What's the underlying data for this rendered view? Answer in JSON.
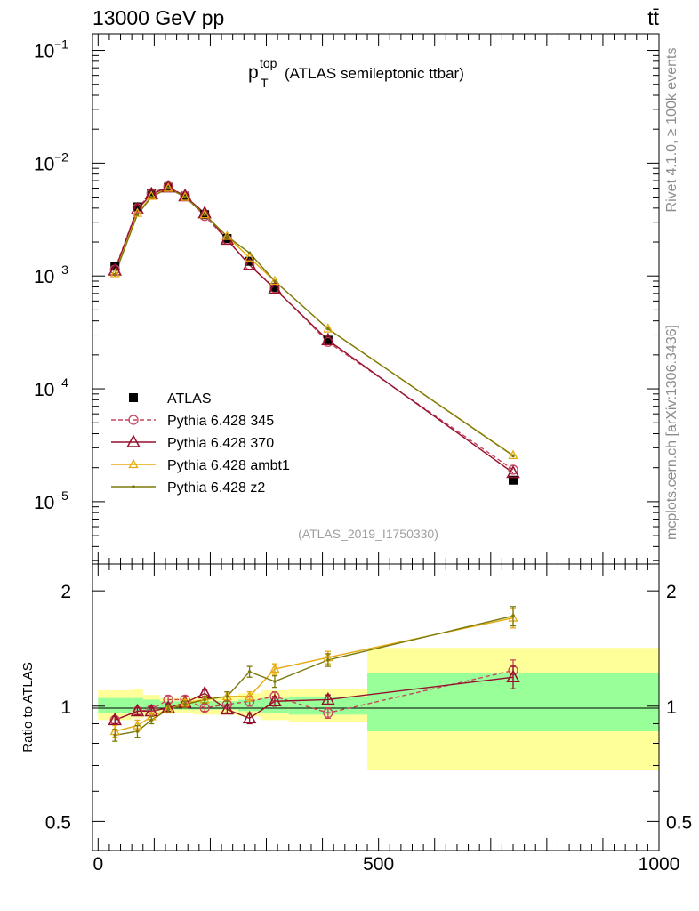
{
  "header": {
    "left": "13000 GeV pp",
    "right": "tt̄"
  },
  "side_labels": {
    "rivet": "Rivet 4.1.0, ≥ 100k events",
    "mcplots": "mcplots.cern.ch [arXiv:1306.3436]"
  },
  "colors": {
    "ATLAS": "#000000",
    "p345": "#c8465f",
    "p370": "#96102e",
    "ambt1": "#e6a90f",
    "z2": "#7a7a0c",
    "band_inner": "#99ff99",
    "band_outer": "#ffff99"
  },
  "chart_data": [
    {
      "type": "line",
      "panel": "main",
      "title_main": "p",
      "title_sub": "T",
      "title_sup": "top",
      "title_rest": "(ATLAS semileptonic ttbar)",
      "watermark": "(ATLAS_2019_I1750330)",
      "yscale": "log",
      "xlim": [
        -10,
        1000
      ],
      "ylim": [
        2.8e-06,
        0.14
      ],
      "ytick_labels": [
        {
          "value": 0.1,
          "base": "10",
          "exp": "−1"
        },
        {
          "value": 0.01,
          "base": "10",
          "exp": "−2"
        },
        {
          "value": 0.001,
          "base": "10",
          "exp": "−3"
        },
        {
          "value": 0.0001,
          "base": "10",
          "exp": "−4"
        },
        {
          "value": 1e-05,
          "base": "10",
          "exp": "−5"
        }
      ],
      "legend_position": "lower-left",
      "x": [
        30,
        70,
        95,
        125,
        155,
        190,
        230,
        270,
        315,
        410,
        740
      ],
      "series": [
        {
          "name": "ATLAS",
          "key": "ATLAS",
          "style": "data",
          "values": [
            0.00122,
            0.0041,
            0.0054,
            0.0061,
            0.0051,
            0.0035,
            0.00215,
            0.00135,
            0.00079,
            0.00027,
            1.55e-05
          ]
        },
        {
          "name": "Pythia 6.428 345",
          "key": "p345",
          "style": "circle-dashed",
          "values": [
            0.00114,
            0.004,
            0.0054,
            0.0062,
            0.0051,
            0.0034,
            0.0021,
            0.00125,
            0.00078,
            0.00026,
            1.92e-05
          ]
        },
        {
          "name": "Pythia 6.428 370",
          "key": "p370",
          "style": "triangle",
          "values": [
            0.00112,
            0.0039,
            0.0053,
            0.0061,
            0.0051,
            0.0036,
            0.0021,
            0.00125,
            0.00077,
            0.00027,
            1.8e-05
          ]
        },
        {
          "name": "Pythia 6.428 ambt1",
          "key": "ambt1",
          "style": "small-triangle",
          "values": [
            0.00105,
            0.0036,
            0.0051,
            0.006,
            0.005,
            0.0035,
            0.00225,
            0.00145,
            0.0009,
            0.00034,
            2.57e-05
          ]
        },
        {
          "name": "Pythia 6.428 z2",
          "key": "z2",
          "style": "dot",
          "values": [
            0.00103,
            0.0035,
            0.005,
            0.006,
            0.005,
            0.0035,
            0.00225,
            0.0016,
            0.0009,
            0.00034,
            2.55e-05
          ]
        }
      ]
    },
    {
      "type": "line",
      "panel": "ratio",
      "ylabel": "Ratio to ATLAS",
      "yscale": "log",
      "xlim": [
        -10,
        1000
      ],
      "ylim": [
        0.42,
        2.35
      ],
      "yticks": [
        0.5,
        1,
        2
      ],
      "ytick_labels": [
        "0.5",
        "1",
        "2"
      ],
      "xticks": [
        0,
        500,
        1000
      ],
      "xtick_labels": [
        "0",
        "500",
        "1000"
      ],
      "x": [
        30,
        70,
        95,
        125,
        155,
        190,
        230,
        270,
        315,
        410,
        740
      ],
      "bins": [
        {
          "x0": 0,
          "x1": 60,
          "inner": [
            0.96,
            1.05
          ],
          "outer": [
            0.92,
            1.1
          ]
        },
        {
          "x0": 60,
          "x1": 80,
          "inner": [
            0.97,
            1.05
          ],
          "outer": [
            0.93,
            1.11
          ]
        },
        {
          "x0": 80,
          "x1": 110,
          "inner": [
            0.97,
            1.04
          ],
          "outer": [
            0.94,
            1.07
          ]
        },
        {
          "x0": 110,
          "x1": 140,
          "inner": [
            0.98,
            1.03
          ],
          "outer": [
            0.96,
            1.05
          ]
        },
        {
          "x0": 140,
          "x1": 170,
          "inner": [
            0.98,
            1.03
          ],
          "outer": [
            0.96,
            1.05
          ]
        },
        {
          "x0": 170,
          "x1": 210,
          "inner": [
            0.98,
            1.03
          ],
          "outer": [
            0.95,
            1.06
          ]
        },
        {
          "x0": 210,
          "x1": 250,
          "inner": [
            0.98,
            1.03
          ],
          "outer": [
            0.95,
            1.06
          ]
        },
        {
          "x0": 250,
          "x1": 290,
          "inner": [
            0.97,
            1.04
          ],
          "outer": [
            0.94,
            1.08
          ]
        },
        {
          "x0": 290,
          "x1": 340,
          "inner": [
            0.96,
            1.05
          ],
          "outer": [
            0.92,
            1.1
          ]
        },
        {
          "x0": 340,
          "x1": 480,
          "inner": [
            0.95,
            1.06
          ],
          "outer": [
            0.91,
            1.11
          ]
        },
        {
          "x0": 480,
          "x1": 1000,
          "inner": [
            0.86,
            1.22
          ],
          "outer": [
            0.68,
            1.42
          ]
        }
      ],
      "series": [
        {
          "name": "Pythia 6.428 345",
          "key": "p345",
          "style": "circle-dashed",
          "values": [
            0.92,
            0.97,
            0.98,
            1.04,
            1.04,
            0.99,
            1.01,
            1.03,
            1.06,
            0.96,
            1.24
          ],
          "errors": [
            0.02,
            0.02,
            0.02,
            0.02,
            0.02,
            0.02,
            0.02,
            0.03,
            0.03,
            0.03,
            0.08
          ]
        },
        {
          "name": "Pythia 6.428 370",
          "key": "p370",
          "style": "triangle",
          "values": [
            0.92,
            0.97,
            0.97,
            0.99,
            1.02,
            1.08,
            0.98,
            0.93,
            1.03,
            1.04,
            1.19
          ],
          "errors": [
            0.02,
            0.02,
            0.02,
            0.02,
            0.02,
            0.02,
            0.02,
            0.03,
            0.03,
            0.03,
            0.08
          ]
        },
        {
          "name": "Pythia 6.428 ambt1",
          "key": "ambt1",
          "style": "small-triangle",
          "values": [
            0.86,
            0.89,
            0.94,
            0.98,
            1.02,
            1.04,
            1.06,
            1.06,
            1.25,
            1.34,
            1.7
          ],
          "errors": [
            0.03,
            0.03,
            0.02,
            0.02,
            0.02,
            0.02,
            0.03,
            0.03,
            0.04,
            0.05,
            0.1
          ]
        },
        {
          "name": "Pythia 6.428 z2",
          "key": "z2",
          "style": "dot",
          "values": [
            0.84,
            0.86,
            0.92,
            0.98,
            1.01,
            1.04,
            1.06,
            1.23,
            1.16,
            1.32,
            1.72
          ],
          "errors": [
            0.03,
            0.03,
            0.02,
            0.02,
            0.02,
            0.02,
            0.03,
            0.04,
            0.04,
            0.05,
            0.1
          ]
        }
      ]
    }
  ]
}
